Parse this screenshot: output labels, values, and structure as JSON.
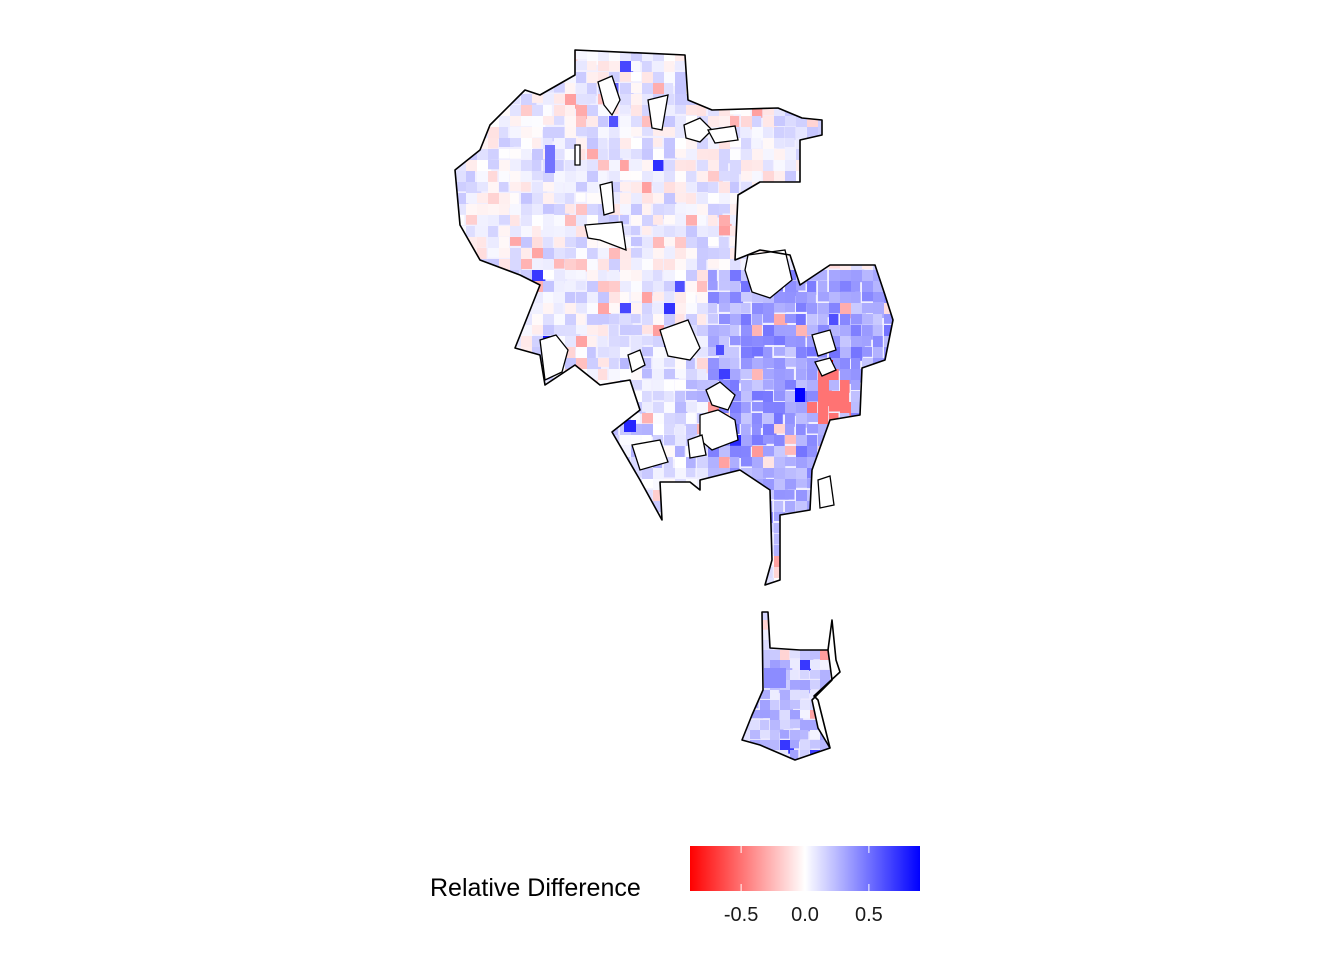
{
  "legend": {
    "title": "Relative Difference",
    "ticks": [
      {
        "value": -0.5,
        "label": "-0.5"
      },
      {
        "value": 0.0,
        "label": "0.0"
      },
      {
        "value": 0.5,
        "label": "0.5"
      }
    ],
    "range": [
      -0.9,
      0.9
    ],
    "colors": {
      "low": "#ff0000",
      "mid": "#ffffff",
      "high": "#0000ff"
    }
  }
}
